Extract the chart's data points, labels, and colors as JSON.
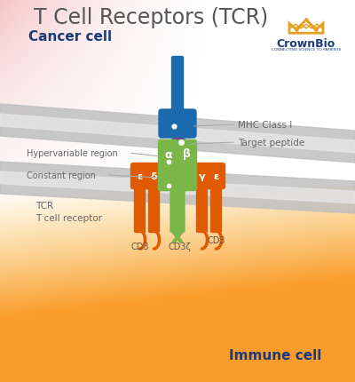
{
  "title": "T Cell Receptors (TCR)",
  "title_fontsize": 17,
  "cancer_cell_label": "Cancer cell",
  "immune_cell_label": "Immune cell",
  "tcr_label": "TCR\nT cell receptor",
  "mhc_label": "MHC Class I",
  "peptide_label": "Target peptide",
  "hyper_label": "Hypervariable region",
  "const_label": "Constant region",
  "cd3_label1": "CD3",
  "cd3_label2": "CD3ζ",
  "cd3_label3": "CD3",
  "alpha_label": "α",
  "beta_label": "β",
  "gamma_label": "γ",
  "epsilon_label1": "ε",
  "epsilon_label2": "ε",
  "delta_label": "δ",
  "bg_color": "#ffffff",
  "blue_color": "#1a6aad",
  "green_color": "#7ab648",
  "orange_color": "#e05a00",
  "purple_color": "#6a3d8f",
  "crown_color": "#e8a020",
  "crownbio_text": "CrownBio",
  "connecting_text": "CONNECTING SCIENCE TO PATIENTS",
  "label_color": "#666666",
  "title_color": "#555555",
  "cell_label_color": "#1a3a7a"
}
